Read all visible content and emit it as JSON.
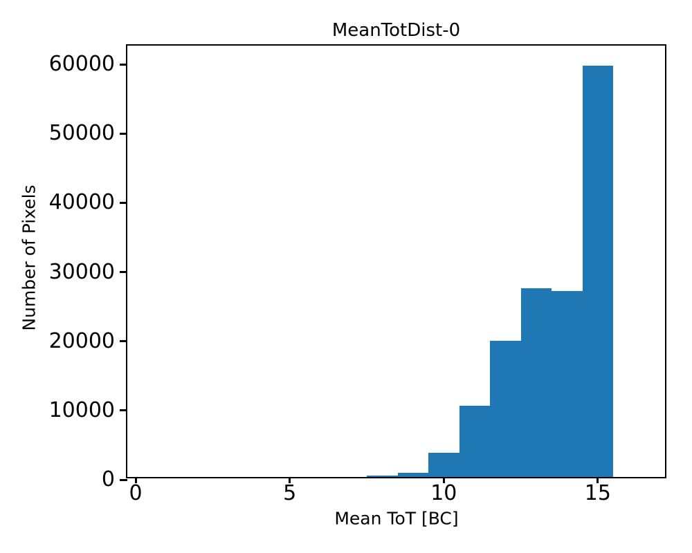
{
  "title": "MeanTotDist-0",
  "xlabel": "Mean ToT [BC]",
  "ylabel": "Number of Pixels",
  "chart_data": {
    "type": "bar",
    "subtype": "histogram",
    "title": "MeanTotDist-0",
    "xlabel": "Mean ToT [BC]",
    "ylabel": "Number of Pixels",
    "bar_color": "#1f77b4",
    "axis_color": "#000000",
    "background_color": "#ffffff",
    "grid": false,
    "legend": null,
    "bin_edges": [
      7.5,
      8.5,
      9.5,
      10.5,
      11.5,
      12.5,
      13.5,
      14.5,
      15.5
    ],
    "counts": [
      250,
      640,
      3500,
      10330,
      19650,
      27250,
      26850,
      59450
    ],
    "xlim": [
      -0.27,
      17.27
    ],
    "ylim": [
      0,
      62700
    ],
    "xticks": [
      0,
      5,
      10,
      15
    ],
    "yticks": [
      0,
      10000,
      20000,
      30000,
      40000,
      50000,
      60000
    ],
    "xtick_labels": [
      "0",
      "5",
      "10",
      "15"
    ],
    "ytick_labels": [
      "0",
      "10000",
      "20000",
      "30000",
      "40000",
      "50000",
      "60000"
    ]
  }
}
